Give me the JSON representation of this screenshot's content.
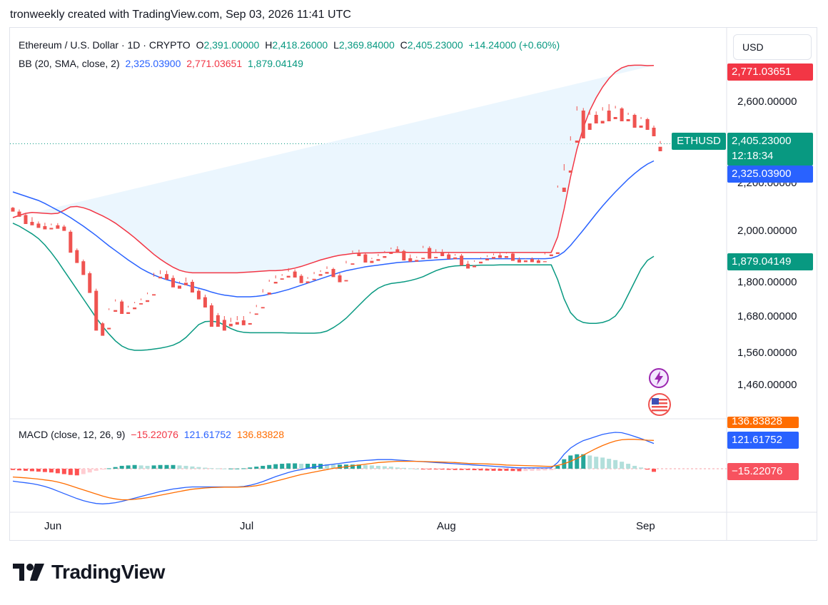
{
  "header": {
    "text": "tronweekly created with TradingView.com, Sep 03, 2026 11:41 UTC"
  },
  "legend": {
    "symbol": "Ethereum / U.S. Dollar · 1D · CRYPTO",
    "o_label": "O",
    "o_value": "2,391.00000",
    "h_label": "H",
    "h_value": "2,418.26000",
    "l_label": "L",
    "l_value": "2,369.84000",
    "c_label": "C",
    "c_value": "2,405.23000",
    "change": "+14.24000 (+0.60%)",
    "bb_label": "BB (20, SMA, close, 2)",
    "bb_basis": "2,325.03900",
    "bb_upper": "2,771.03651",
    "bb_lower": "1,879.04149",
    "macd_label": "MACD (close, 12, 26, 9)",
    "macd_hist": "−15.22076",
    "macd_line": "121.61752",
    "macd_signal": "136.83828"
  },
  "currency_button": "USD",
  "price_axis": {
    "ticks": [
      "2,600.00000",
      "2,200.00000",
      "2,000.00000",
      "1,800.00000",
      "1,680.00000",
      "1,560.00000",
      "1,460.00000"
    ],
    "upper_badge": "2,771.03651",
    "symbol_badge": "ETHUSD",
    "price_badge": "2,405.23000",
    "countdown": "12:18:34",
    "basis_badge": "2,325.03900",
    "lower_badge": "1,879.04149",
    "macd_signal_badge": "136.83828",
    "macd_line_badge": "121.61752",
    "macd_hist_badge": "−15.22076"
  },
  "time_axis": {
    "labels": [
      "Jun",
      "Jul",
      "Aug",
      "Sep"
    ]
  },
  "colors": {
    "up": "#26a69a",
    "down": "#ef5350",
    "bb_basis": "#2962ff",
    "bb_upper": "#f23645",
    "bb_lower": "#089981",
    "bb_fill": "#e3f2fd",
    "macd_line": "#2962ff",
    "macd_signal": "#ff6d00",
    "badge_price": "#089981",
    "badge_upper": "#f23645",
    "badge_basis": "#2962ff",
    "badge_lower": "#089981",
    "badge_signal": "#ff6d00",
    "badge_hist": "#f23645"
  },
  "logo": {
    "text": "TradingView",
    "icon": "tradingview-logo-icon"
  },
  "icons": [
    "lightning-icon",
    "us-flag-icon"
  ],
  "chart_data": {
    "type": "candlestick",
    "title": "Ethereum / U.S. Dollar · 1D · CRYPTO",
    "x_labels": [
      "Jun",
      "Jul",
      "Aug",
      "Sep"
    ],
    "ylim": [
      1400,
      2800
    ],
    "candles": [
      [
        2106,
        2110,
        2098,
        2088
      ],
      [
        2088,
        2098,
        2072,
        2064
      ],
      [
        2072,
        2082,
        2040,
        2030
      ],
      [
        2040,
        2062,
        2032,
        2024
      ],
      [
        2032,
        2042,
        2020,
        2012
      ],
      [
        2020,
        2036,
        2012,
        2005
      ],
      [
        2012,
        2032,
        2024,
        2005
      ],
      [
        2024,
        2034,
        2018,
        2008
      ],
      [
        2018,
        2026,
        2006,
        1998
      ],
      [
        1994,
        2002,
        1908,
        1896
      ],
      [
        1908,
        1916,
        1856,
        1848
      ],
      [
        1856,
        1864,
        1800,
        1792
      ],
      [
        1800,
        1808,
        1718,
        1708
      ],
      [
        1718,
        1728,
        1566,
        1532
      ],
      [
        1566,
        1572,
        1545,
        1508
      ],
      [
        1545,
        1636,
        1628,
        1538
      ],
      [
        1628,
        1678,
        1668,
        1620
      ],
      [
        1668,
        1676,
        1618,
        1610
      ],
      [
        1618,
        1648,
        1640,
        1610
      ],
      [
        1640,
        1666,
        1660,
        1632
      ],
      [
        1660,
        1682,
        1674,
        1654
      ],
      [
        1674,
        1710,
        1702,
        1666
      ],
      [
        1702,
        1802,
        1784,
        1696
      ],
      [
        1784,
        1814,
        1796,
        1776
      ],
      [
        1796,
        1812,
        1778,
        1770
      ],
      [
        1778,
        1790,
        1742,
        1734
      ],
      [
        1742,
        1762,
        1756,
        1728
      ],
      [
        1756,
        1780,
        1760,
        1744
      ],
      [
        1760,
        1770,
        1718,
        1710
      ],
      [
        1718,
        1726,
        1688,
        1678
      ],
      [
        1688,
        1700,
        1650,
        1640
      ],
      [
        1650,
        1660,
        1604,
        1550
      ],
      [
        1604,
        1614,
        1582,
        1550
      ],
      [
        1582,
        1600,
        1564,
        1532
      ],
      [
        1564,
        1592,
        1572,
        1552
      ],
      [
        1572,
        1600,
        1580,
        1560
      ],
      [
        1580,
        1600,
        1567,
        1557
      ],
      [
        1567,
        1620,
        1612,
        1560
      ],
      [
        1612,
        1652,
        1642,
        1606
      ],
      [
        1642,
        1726,
        1710,
        1636
      ],
      [
        1710,
        1770,
        1760,
        1700
      ],
      [
        1760,
        1790,
        1776,
        1752
      ],
      [
        1776,
        1796,
        1788,
        1770
      ],
      [
        1788,
        1824,
        1808,
        1780
      ],
      [
        1808,
        1818,
        1788,
        1780
      ],
      [
        1788,
        1796,
        1762,
        1754
      ],
      [
        1762,
        1782,
        1774,
        1754
      ],
      [
        1774,
        1806,
        1796,
        1768
      ],
      [
        1796,
        1814,
        1806,
        1788
      ],
      [
        1806,
        1832,
        1820,
        1798
      ],
      [
        1820,
        1826,
        1790,
        1782
      ],
      [
        1790,
        1800,
        1768,
        1758
      ],
      [
        1768,
        1858,
        1846,
        1762
      ],
      [
        1846,
        1906,
        1896,
        1840
      ],
      [
        1896,
        1910,
        1888,
        1880
      ],
      [
        1888,
        1894,
        1858,
        1850
      ],
      [
        1858,
        1872,
        1866,
        1848
      ],
      [
        1866,
        1890,
        1880,
        1858
      ],
      [
        1880,
        1904,
        1896,
        1872
      ],
      [
        1896,
        1920,
        1912,
        1890
      ],
      [
        1912,
        1926,
        1904,
        1896
      ],
      [
        1904,
        1910,
        1870,
        1860
      ],
      [
        1870,
        1888,
        1862,
        1854
      ],
      [
        1862,
        1878,
        1872,
        1854
      ],
      [
        1872,
        1928,
        1918,
        1866
      ],
      [
        1918,
        1926,
        1876,
        1868
      ],
      [
        1876,
        1912,
        1900,
        1870
      ],
      [
        1900,
        1912,
        1888,
        1880
      ],
      [
        1888,
        1896,
        1874,
        1866
      ],
      [
        1874,
        1890,
        1882,
        1866
      ],
      [
        1882,
        1890,
        1844,
        1836
      ],
      [
        1844,
        1858,
        1836,
        1822
      ],
      [
        1836,
        1860,
        1854,
        1828
      ],
      [
        1854,
        1874,
        1868,
        1846
      ],
      [
        1868,
        1884,
        1876,
        1860
      ],
      [
        1876,
        1892,
        1884,
        1868
      ],
      [
        1884,
        1894,
        1880,
        1872
      ],
      [
        1880,
        1900,
        1892,
        1872
      ],
      [
        1892,
        1900,
        1864,
        1858
      ],
      [
        1864,
        1874,
        1860,
        1850
      ],
      [
        1860,
        1870,
        1866,
        1852
      ],
      [
        1866,
        1874,
        1860,
        1852
      ],
      [
        1860,
        1866,
        1856,
        1848
      ],
      [
        1856,
        1896,
        1888,
        1852
      ],
      [
        1888,
        1906,
        1898,
        1880
      ],
      [
        1898,
        2210,
        2200,
        1890
      ],
      [
        2200,
        2310,
        2280,
        2180
      ],
      [
        2280,
        2440,
        2420,
        2270
      ],
      [
        2420,
        2580,
        2560,
        2410
      ],
      [
        2560,
        2572,
        2500,
        2430
      ],
      [
        2500,
        2560,
        2540,
        2470
      ],
      [
        2540,
        2556,
        2512,
        2500
      ],
      [
        2512,
        2576,
        2560,
        2500
      ],
      [
        2560,
        2590,
        2530,
        2510
      ],
      [
        2530,
        2582,
        2570,
        2520
      ],
      [
        2570,
        2576,
        2520,
        2510
      ],
      [
        2520,
        2550,
        2540,
        2510
      ],
      [
        2540,
        2546,
        2490,
        2480
      ],
      [
        2490,
        2530,
        2520,
        2480
      ],
      [
        2520,
        2526,
        2480,
        2470
      ],
      [
        2480,
        2490,
        2456,
        2440
      ],
      [
        2391,
        2418,
        2405,
        2370
      ]
    ],
    "bb_upper": [
      2060,
      2070,
      2080,
      2084,
      2082,
      2080,
      2078,
      2080,
      2094,
      2110,
      2112,
      2106,
      2096,
      2082,
      2068,
      2052,
      2034,
      2012,
      1990,
      1966,
      1940,
      1914,
      1888,
      1866,
      1846,
      1828,
      1814,
      1806,
      1802,
      1802,
      1802,
      1802,
      1802,
      1802,
      1802,
      1802,
      1804,
      1806,
      1808,
      1810,
      1812,
      1812,
      1814,
      1818,
      1824,
      1832,
      1842,
      1852,
      1862,
      1870,
      1878,
      1884,
      1888,
      1892,
      1894,
      1895,
      1895,
      1896,
      1897,
      1898,
      1898,
      1898,
      1897,
      1897,
      1897,
      1897,
      1897,
      1897,
      1897,
      1897,
      1897,
      1897,
      1897,
      1897,
      1897,
      1897,
      1897,
      1897,
      1897,
      1897,
      1897,
      1897,
      1897,
      1897,
      1897,
      1970,
      2100,
      2250,
      2380,
      2480,
      2560,
      2620,
      2670,
      2710,
      2740,
      2760,
      2770,
      2772,
      2772,
      2770,
      2771
    ],
    "bb_basis": [
      2180,
      2170,
      2160,
      2150,
      2140,
      2126,
      2110,
      2094,
      2078,
      2060,
      2040,
      2020,
      1998,
      1976,
      1952,
      1928,
      1906,
      1884,
      1862,
      1842,
      1822,
      1806,
      1792,
      1780,
      1770,
      1762,
      1754,
      1746,
      1738,
      1730,
      1722,
      1712,
      1704,
      1698,
      1694,
      1690,
      1690,
      1690,
      1692,
      1696,
      1702,
      1708,
      1716,
      1724,
      1734,
      1744,
      1754,
      1764,
      1774,
      1784,
      1794,
      1804,
      1812,
      1818,
      1824,
      1830,
      1834,
      1838,
      1842,
      1846,
      1850,
      1852,
      1854,
      1856,
      1858,
      1860,
      1862,
      1864,
      1866,
      1868,
      1868,
      1868,
      1868,
      1868,
      1868,
      1868,
      1868,
      1868,
      1868,
      1868,
      1868,
      1868,
      1868,
      1868,
      1870,
      1880,
      1900,
      1930,
      1966,
      2002,
      2040,
      2078,
      2114,
      2148,
      2180,
      2210,
      2240,
      2266,
      2290,
      2310,
      2325
    ],
    "bb_lower": [
      2034,
      2020,
      2002,
      1984,
      1962,
      1932,
      1896,
      1856,
      1812,
      1768,
      1724,
      1680,
      1636,
      1592,
      1552,
      1516,
      1484,
      1460,
      1446,
      1440,
      1440,
      1442,
      1446,
      1450,
      1456,
      1464,
      1478,
      1500,
      1530,
      1560,
      1574,
      1576,
      1572,
      1558,
      1542,
      1530,
      1524,
      1522,
      1522,
      1522,
      1522,
      1522,
      1522,
      1521,
      1521,
      1520,
      1520,
      1520,
      1522,
      1530,
      1546,
      1566,
      1590,
      1620,
      1650,
      1680,
      1708,
      1730,
      1744,
      1752,
      1756,
      1760,
      1766,
      1774,
      1784,
      1798,
      1812,
      1822,
      1830,
      1834,
      1836,
      1836,
      1836,
      1838,
      1838,
      1838,
      1839,
      1839,
      1839,
      1839,
      1839,
      1839,
      1839,
      1839,
      1839,
      1770,
      1680,
      1616,
      1584,
      1570,
      1566,
      1566,
      1570,
      1580,
      1600,
      1640,
      1700,
      1760,
      1820,
      1860,
      1879
    ],
    "macd": {
      "ylim": [
        -220,
        260
      ],
      "macd_line": [
        -60,
        -64,
        -68,
        -72,
        -78,
        -86,
        -96,
        -108,
        -120,
        -132,
        -144,
        -154,
        -162,
        -168,
        -170,
        -168,
        -164,
        -158,
        -150,
        -142,
        -134,
        -126,
        -118,
        -110,
        -104,
        -98,
        -94,
        -90,
        -88,
        -88,
        -88,
        -88,
        -88,
        -88,
        -88,
        -88,
        -86,
        -80,
        -72,
        -62,
        -50,
        -38,
        -28,
        -18,
        -10,
        -4,
        2,
        8,
        14,
        18,
        22,
        26,
        30,
        34,
        38,
        40,
        42,
        44,
        44,
        44,
        42,
        40,
        38,
        36,
        34,
        32,
        30,
        28,
        26,
        24,
        22,
        20,
        18,
        16,
        14,
        12,
        10,
        8,
        6,
        4,
        4,
        4,
        4,
        4,
        4,
        30,
        70,
        100,
        120,
        136,
        146,
        156,
        166,
        172,
        176,
        174,
        166,
        156,
        146,
        134,
        122
      ],
      "signal_line": [
        -40,
        -42,
        -44,
        -47,
        -50,
        -54,
        -58,
        -64,
        -72,
        -82,
        -92,
        -102,
        -112,
        -122,
        -132,
        -140,
        -146,
        -150,
        -150,
        -148,
        -144,
        -140,
        -134,
        -128,
        -122,
        -116,
        -110,
        -104,
        -99,
        -96,
        -93,
        -91,
        -90,
        -89,
        -89,
        -89,
        -88,
        -86,
        -82,
        -76,
        -68,
        -60,
        -52,
        -44,
        -36,
        -28,
        -22,
        -16,
        -10,
        -4,
        2,
        6,
        10,
        14,
        18,
        22,
        26,
        30,
        32,
        34,
        36,
        36,
        36,
        36,
        35,
        34,
        33,
        32,
        31,
        30,
        28,
        26,
        25,
        24,
        23,
        22,
        20,
        18,
        17,
        16,
        15,
        14,
        13,
        12,
        11,
        16,
        24,
        36,
        50,
        66,
        82,
        98,
        112,
        124,
        134,
        140,
        142,
        142,
        140,
        138,
        137
      ],
      "histogram": [
        -6,
        -8,
        -10,
        -12,
        -14,
        -16,
        -18,
        -22,
        -26,
        -30,
        -32,
        -26,
        -18,
        -10,
        -4,
        2,
        8,
        14,
        16,
        18,
        16,
        14,
        16,
        18,
        18,
        18,
        16,
        14,
        11,
        8,
        5,
        3,
        2,
        1,
        1,
        1,
        2,
        6,
        10,
        14,
        18,
        22,
        24,
        26,
        26,
        24,
        24,
        24,
        24,
        22,
        20,
        20,
        20,
        20,
        20,
        18,
        16,
        14,
        12,
        10,
        6,
        4,
        2,
        0,
        -1,
        -2,
        -3,
        -4,
        -5,
        -6,
        -6,
        -6,
        -7,
        -8,
        -9,
        -10,
        -10,
        -10,
        -11,
        -12,
        -11,
        -10,
        -9,
        -8,
        -7,
        14,
        46,
        64,
        70,
        70,
        64,
        58,
        54,
        48,
        42,
        34,
        24,
        14,
        6,
        -4,
        -15
      ]
    }
  }
}
